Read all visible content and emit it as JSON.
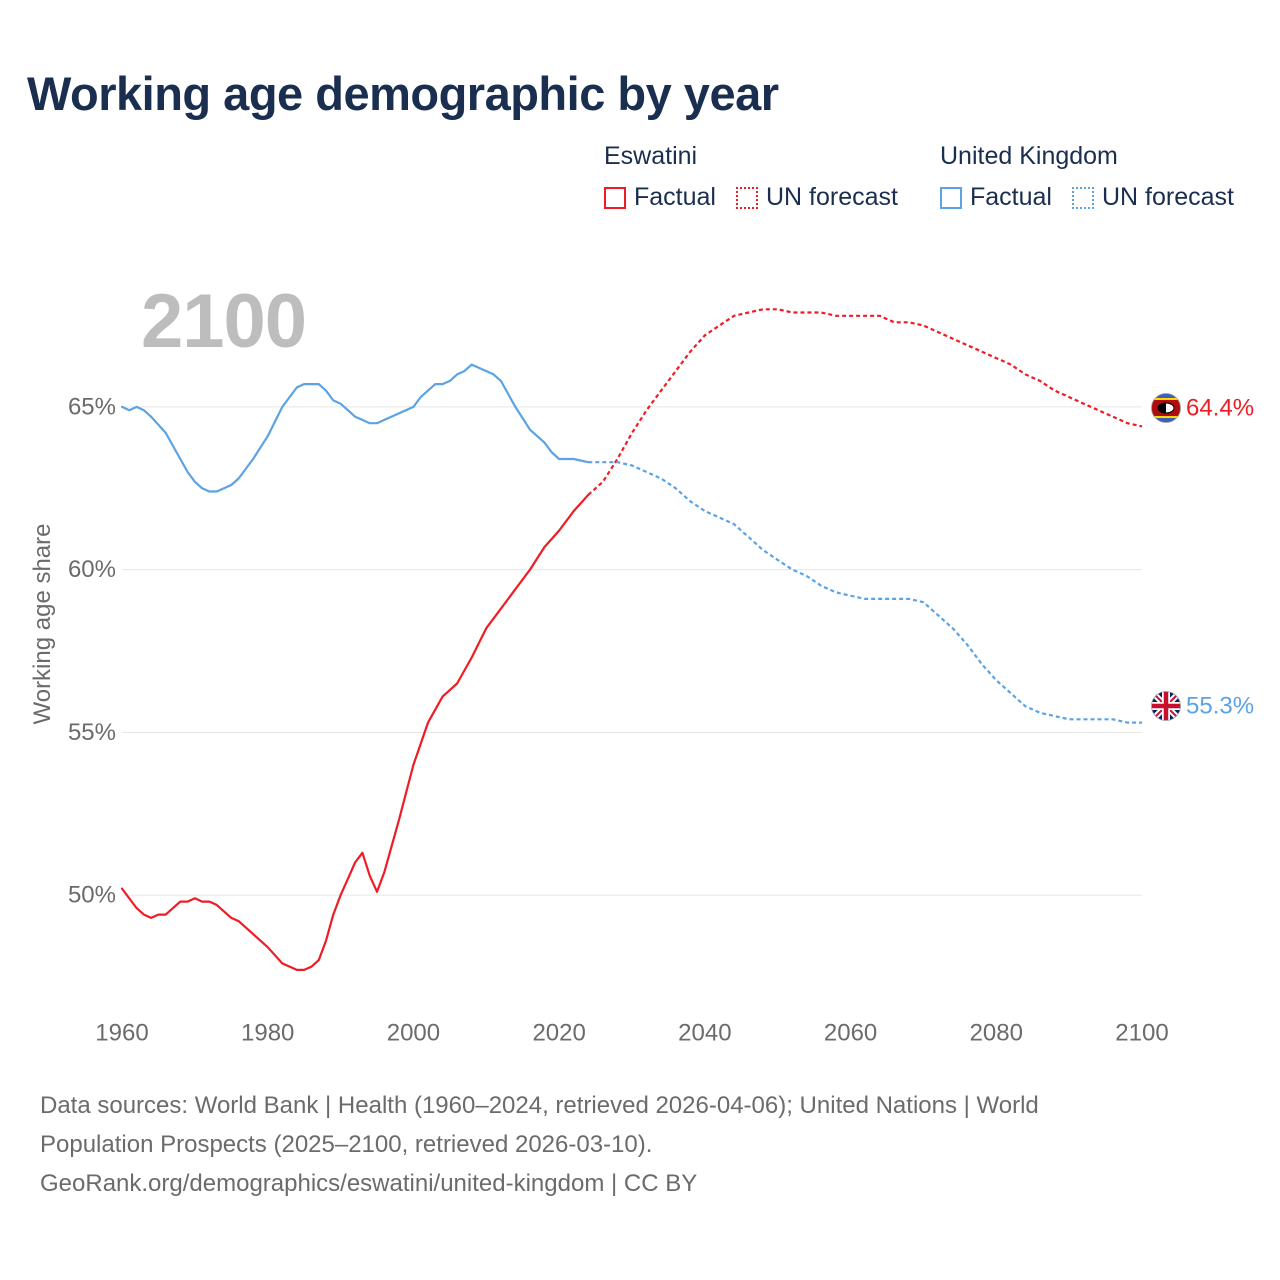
{
  "title": "Working age demographic by year",
  "current_year_label": "2100",
  "legend": {
    "groups": [
      {
        "country": "Eswatini",
        "factual_label": "Factual",
        "forecast_label": "UN forecast",
        "color": "#ee1c25"
      },
      {
        "country": "United Kingdom",
        "factual_label": "Factual",
        "forecast_label": "UN forecast",
        "color": "#5ba3e3"
      }
    ]
  },
  "sources": {
    "line1": "Data sources: World Bank | Health (1960–2024, retrieved 2026-04-06); United Nations | World",
    "line2": "Population Prospects (2025–2100, retrieved 2026-03-10).",
    "line3": "GeoRank.org/demographics/eswatini/united-kingdom | CC BY"
  },
  "chart_data": {
    "type": "line",
    "title": "Working age demographic by year",
    "xlabel": "",
    "ylabel": "Working age share",
    "xlim": [
      1960,
      2100
    ],
    "ylim": [
      46.5,
      68.5
    ],
    "x_ticks": [
      1960,
      1980,
      2000,
      2020,
      2040,
      2060,
      2080,
      2100
    ],
    "x_tick_labels": [
      "1960",
      "1980",
      "2000",
      "2020",
      "2040",
      "2060",
      "2080",
      "2100"
    ],
    "y_ticks": [
      50,
      55,
      60,
      65
    ],
    "y_tick_labels": [
      "50%",
      "55%",
      "60%",
      "65%"
    ],
    "grid": true,
    "series": [
      {
        "name": "Eswatini",
        "color": "#ee1c25",
        "end_label": "64.4%",
        "flag": "eswatini-flag-icon",
        "factual": {
          "x": [
            1960,
            1962,
            1963,
            1964,
            1965,
            1966,
            1967,
            1968,
            1969,
            1970,
            1971,
            1972,
            1973,
            1974,
            1975,
            1976,
            1978,
            1980,
            1982,
            1984,
            1985,
            1986,
            1987,
            1988,
            1989,
            1990,
            1991,
            1992,
            1993,
            1994,
            1995,
            1996,
            1998,
            2000,
            2002,
            2004,
            2006,
            2008,
            2010,
            2012,
            2014,
            2016,
            2018,
            2020,
            2022,
            2024
          ],
          "y": [
            50.2,
            49.6,
            49.4,
            49.3,
            49.4,
            49.4,
            49.6,
            49.8,
            49.8,
            49.9,
            49.8,
            49.8,
            49.7,
            49.5,
            49.3,
            49.2,
            48.8,
            48.4,
            47.9,
            47.7,
            47.7,
            47.8,
            48.0,
            48.6,
            49.4,
            50.0,
            50.5,
            51.0,
            51.3,
            50.6,
            50.1,
            50.7,
            52.3,
            54.0,
            55.3,
            56.1,
            56.5,
            57.3,
            58.2,
            58.8,
            59.4,
            60.0,
            60.7,
            61.2,
            61.8,
            62.3
          ]
        },
        "forecast": {
          "x": [
            2024,
            2025,
            2026,
            2028,
            2030,
            2032,
            2034,
            2036,
            2038,
            2040,
            2042,
            2044,
            2046,
            2048,
            2050,
            2052,
            2054,
            2056,
            2058,
            2060,
            2062,
            2064,
            2066,
            2068,
            2070,
            2072,
            2074,
            2076,
            2078,
            2080,
            2082,
            2084,
            2086,
            2088,
            2090,
            2092,
            2094,
            2096,
            2098,
            2100
          ],
          "y": [
            62.3,
            62.5,
            62.7,
            63.4,
            64.2,
            64.9,
            65.5,
            66.1,
            66.7,
            67.2,
            67.5,
            67.8,
            67.9,
            68.0,
            68.0,
            67.9,
            67.9,
            67.9,
            67.8,
            67.8,
            67.8,
            67.8,
            67.6,
            67.6,
            67.5,
            67.3,
            67.1,
            66.9,
            66.7,
            66.5,
            66.3,
            66.0,
            65.8,
            65.5,
            65.3,
            65.1,
            64.9,
            64.7,
            64.5,
            64.4
          ]
        }
      },
      {
        "name": "United Kingdom",
        "color": "#5ba3e3",
        "end_label": "55.3%",
        "flag": "uk-flag-icon",
        "factual": {
          "x": [
            1960,
            1961,
            1962,
            1963,
            1964,
            1966,
            1968,
            1969,
            1970,
            1971,
            1972,
            1973,
            1974,
            1975,
            1976,
            1978,
            1980,
            1982,
            1984,
            1985,
            1986,
            1987,
            1988,
            1989,
            1990,
            1991,
            1992,
            1993,
            1994,
            1995,
            1996,
            1998,
            2000,
            2001,
            2002,
            2003,
            2004,
            2005,
            2006,
            2007,
            2008,
            2009,
            2010,
            2011,
            2012,
            2013,
            2014,
            2016,
            2018,
            2019,
            2020,
            2022,
            2024
          ],
          "y": [
            65.0,
            64.9,
            65.0,
            64.9,
            64.7,
            64.2,
            63.4,
            63.0,
            62.7,
            62.5,
            62.4,
            62.4,
            62.5,
            62.6,
            62.8,
            63.4,
            64.1,
            65.0,
            65.6,
            65.7,
            65.7,
            65.7,
            65.5,
            65.2,
            65.1,
            64.9,
            64.7,
            64.6,
            64.5,
            64.5,
            64.6,
            64.8,
            65.0,
            65.3,
            65.5,
            65.7,
            65.7,
            65.8,
            66.0,
            66.1,
            66.3,
            66.2,
            66.1,
            66.0,
            65.8,
            65.4,
            65.0,
            64.3,
            63.9,
            63.6,
            63.4,
            63.4,
            63.3
          ]
        },
        "forecast": {
          "x": [
            2024,
            2026,
            2028,
            2030,
            2032,
            2034,
            2036,
            2038,
            2040,
            2042,
            2044,
            2046,
            2048,
            2050,
            2052,
            2054,
            2056,
            2058,
            2060,
            2062,
            2064,
            2066,
            2068,
            2070,
            2072,
            2074,
            2076,
            2078,
            2080,
            2082,
            2084,
            2086,
            2088,
            2090,
            2092,
            2094,
            2096,
            2098,
            2100
          ],
          "y": [
            63.3,
            63.3,
            63.3,
            63.2,
            63.0,
            62.8,
            62.5,
            62.1,
            61.8,
            61.6,
            61.4,
            61.0,
            60.6,
            60.3,
            60.0,
            59.8,
            59.5,
            59.3,
            59.2,
            59.1,
            59.1,
            59.1,
            59.1,
            59.0,
            58.6,
            58.2,
            57.7,
            57.1,
            56.6,
            56.2,
            55.8,
            55.6,
            55.5,
            55.4,
            55.4,
            55.4,
            55.4,
            55.3,
            55.3
          ]
        }
      }
    ]
  }
}
